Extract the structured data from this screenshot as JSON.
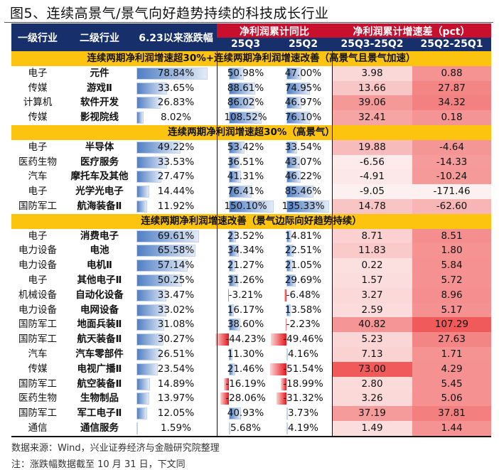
{
  "title": "图5、连续高景气/景气向好趋势持续的科技成长行业",
  "header": {
    "col1": "一级行业",
    "col2": "二级行业",
    "col3": "6.23以来涨跌幅",
    "group1": "净利润累计同比",
    "group2": "净利润累计增速差（pct）",
    "q3": "25Q3",
    "q2": "25Q2",
    "d1": "25Q3-25Q2",
    "d2": "25Q2-25Q1"
  },
  "sections": [
    {
      "label": "连续两期净利润增速超30%+连续两期净利润增速改善（高景气且景气加速）",
      "rows": [
        [
          "电子",
          "元件",
          78.84,
          50.98,
          47.0,
          3.98,
          0.88
        ],
        [
          "传媒",
          "游戏Ⅱ",
          33.65,
          88.61,
          74.95,
          13.66,
          27.87
        ],
        [
          "计算机",
          "软件开发",
          26.83,
          86.02,
          46.97,
          39.06,
          34.32
        ],
        [
          "传媒",
          "影视院线",
          8.02,
          108.52,
          76.1,
          32.41,
          0.18
        ]
      ]
    },
    {
      "label": "连续两期净利润增速超30%（高景气）",
      "rows": [
        [
          "电子",
          "半导体",
          49.22,
          53.42,
          33.54,
          19.88,
          -4.64
        ],
        [
          "医药生物",
          "医疗服务",
          33.53,
          36.51,
          43.07,
          -6.56,
          -14.33
        ],
        [
          "汽车",
          "摩托车及其他",
          27.47,
          41.31,
          46.22,
          -4.91,
          -10.24
        ],
        [
          "电子",
          "光学光电子",
          14.44,
          76.41,
          85.46,
          -9.05,
          -171.46
        ],
        [
          "国防军工",
          "航海装备Ⅱ",
          11.92,
          150.1,
          135.33,
          14.78,
          -62.6
        ]
      ]
    },
    {
      "label": "连续两期净利润增速改善（景气边际向好趋势持续）",
      "rows": [
        [
          "电子",
          "消费电子",
          69.61,
          23.52,
          14.81,
          8.71,
          8.51
        ],
        [
          "电力设备",
          "电池",
          65.58,
          34.34,
          22.51,
          11.83,
          1.8
        ],
        [
          "电力设备",
          "电机Ⅱ",
          57.14,
          21.27,
          21.05,
          0.22,
          5.84
        ],
        [
          "电子",
          "其他电子Ⅱ",
          50.25,
          31.26,
          29.69,
          1.57,
          5.72
        ],
        [
          "机械设备",
          "自动化设备",
          33.47,
          -3.21,
          -6.48,
          3.27,
          8.96
        ],
        [
          "电力设备",
          "电网设备",
          33.02,
          16.17,
          13.58,
          2.59,
          5.17
        ],
        [
          "国防军工",
          "地面兵装Ⅱ",
          31.08,
          38.6,
          -2.23,
          40.82,
          107.29
        ],
        [
          "国防军工",
          "航天装备Ⅱ",
          30.27,
          -44.23,
          -49.46,
          5.23,
          27.63
        ],
        [
          "汽车",
          "汽车零部件",
          26.51,
          11.3,
          4.16,
          7.13,
          1.71
        ],
        [
          "传媒",
          "电视广播Ⅱ",
          23.54,
          21.46,
          -51.54,
          73.0,
          4.29
        ],
        [
          "国防军工",
          "航空装备Ⅱ",
          14.89,
          -16.19,
          -18.99,
          2.8,
          5.45
        ],
        [
          "医药生物",
          "生物制品",
          13.97,
          -28.06,
          -31.32,
          3.26,
          5.06
        ],
        [
          "国防军工",
          "军工电子Ⅱ",
          12.05,
          40.93,
          3.73,
          37.19,
          37.81
        ],
        [
          "通信",
          "通信服务",
          1.59,
          5.68,
          4.19,
          1.49,
          1.44
        ]
      ]
    }
  ],
  "footer": {
    "source": "数据来源：Wind，兴业证券经济与金融研究院整理",
    "note": "注：涨跌幅数据截至 10 月 31 日，下文同"
  },
  "colors": {
    "navy": "#17306b",
    "red": "#c8102e",
    "yellow": "#fcc30f",
    "bar_blue": "#4f7fc4",
    "heat_low": "#fdf0f0",
    "heat_high": "#f05a5a"
  }
}
